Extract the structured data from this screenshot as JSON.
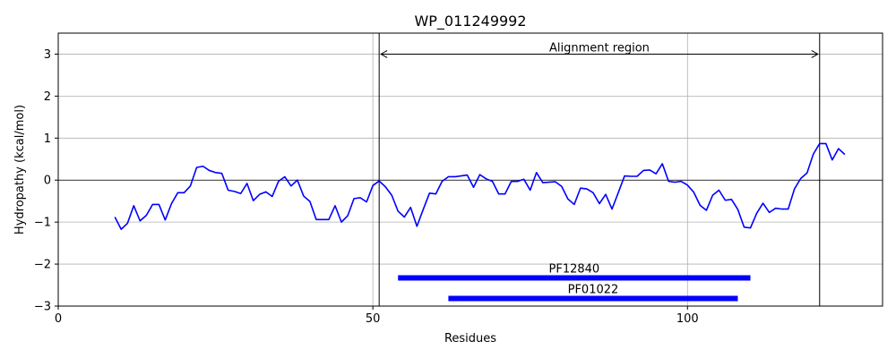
{
  "chart_data": {
    "type": "line",
    "title": "WP_011249992",
    "xlabel": "Residues",
    "ylabel": "Hydropathy (kcal/mol)",
    "xlim": [
      0,
      131
    ],
    "ylim": [
      -3,
      3.5
    ],
    "xticks": [
      0,
      50,
      100
    ],
    "yticks": [
      -3,
      -2,
      -1,
      0,
      1,
      2,
      3
    ],
    "grid": true,
    "series": [
      {
        "color": "#0000ff",
        "x": [
          9,
          10,
          11,
          12,
          13,
          14,
          15,
          16,
          17,
          18,
          19,
          20,
          21,
          22,
          23,
          24,
          25,
          26,
          27,
          28,
          29,
          30,
          31,
          32,
          33,
          34,
          35,
          36,
          37,
          38,
          39,
          40,
          41,
          42,
          43,
          44,
          45,
          46,
          47,
          48,
          49,
          50,
          51,
          52,
          53,
          54,
          55,
          56,
          57,
          58,
          59,
          60,
          61,
          62,
          63,
          64,
          65,
          66,
          67,
          68,
          69,
          70,
          71,
          72,
          73,
          74,
          75,
          76,
          77,
          78,
          79,
          80,
          81,
          82,
          83,
          84,
          85,
          86,
          87,
          88,
          89,
          90,
          91,
          92,
          93,
          94,
          95,
          96,
          97,
          98,
          99,
          100,
          101,
          102,
          103,
          104,
          105,
          106,
          107,
          108,
          109,
          110,
          111,
          112,
          113,
          114,
          115,
          116,
          117,
          118,
          119,
          120,
          121,
          122,
          123,
          124,
          125
        ],
        "y": [
          -0.88,
          -1.17,
          -1.03,
          -0.61,
          -0.97,
          -0.84,
          -0.58,
          -0.58,
          -0.95,
          -0.56,
          -0.3,
          -0.3,
          -0.14,
          0.3,
          0.33,
          0.23,
          0.18,
          0.16,
          -0.24,
          -0.27,
          -0.32,
          -0.08,
          -0.49,
          -0.34,
          -0.28,
          -0.39,
          -0.03,
          0.08,
          -0.14,
          0.0,
          -0.38,
          -0.51,
          -0.94,
          -0.94,
          -0.94,
          -0.61,
          -1.0,
          -0.85,
          -0.44,
          -0.42,
          -0.52,
          -0.13,
          -0.02,
          -0.16,
          -0.36,
          -0.74,
          -0.88,
          -0.65,
          -1.1,
          -0.7,
          -0.31,
          -0.33,
          -0.03,
          0.08,
          0.08,
          0.1,
          0.12,
          -0.17,
          0.13,
          0.03,
          -0.03,
          -0.33,
          -0.33,
          -0.03,
          -0.03,
          0.02,
          -0.24,
          0.18,
          -0.06,
          -0.05,
          -0.04,
          -0.15,
          -0.45,
          -0.58,
          -0.19,
          -0.21,
          -0.3,
          -0.56,
          -0.34,
          -0.69,
          -0.3,
          0.1,
          0.09,
          0.09,
          0.23,
          0.24,
          0.15,
          0.39,
          -0.03,
          -0.05,
          -0.03,
          -0.12,
          -0.29,
          -0.6,
          -0.72,
          -0.36,
          -0.24,
          -0.48,
          -0.46,
          -0.7,
          -1.12,
          -1.14,
          -0.79,
          -0.55,
          -0.77,
          -0.67,
          -0.69,
          -0.69,
          -0.21,
          0.04,
          0.17,
          0.62,
          0.87,
          0.87,
          0.48,
          0.75,
          0.61
        ]
      }
    ],
    "vlines": [
      51,
      121
    ],
    "annotation": {
      "text": "Alignment region",
      "x_start": 51,
      "x_end": 121,
      "y": 3.0
    },
    "domains": [
      {
        "name": "PF12840",
        "start": 54,
        "end": 110,
        "y": -2.33
      },
      {
        "name": "PF01022",
        "start": 62,
        "end": 108,
        "y": -2.82
      }
    ]
  }
}
